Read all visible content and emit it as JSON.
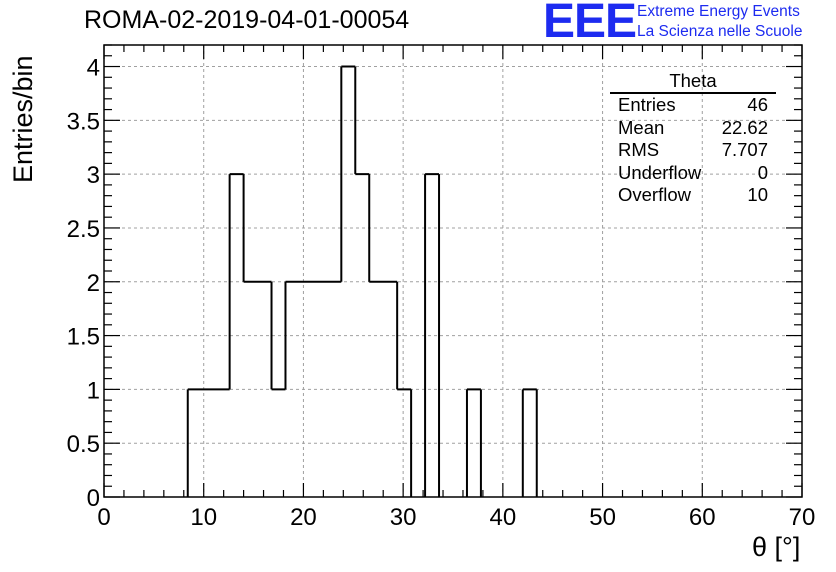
{
  "header": {
    "title": "ROMA-02-2019-04-01-00054",
    "logo_text": "EEE",
    "logo_line1": "Extreme Energy Events",
    "logo_line2": "La Scienza nelle Scuole",
    "logo_color": "#1d2bf0"
  },
  "stats": {
    "title": "Theta",
    "rows": [
      {
        "label": "Entries",
        "value": "46"
      },
      {
        "label": "Mean",
        "value": "22.62"
      },
      {
        "label": "RMS",
        "value": "7.707"
      },
      {
        "label": "Underflow",
        "value": "0"
      },
      {
        "label": "Overflow",
        "value": "10"
      }
    ]
  },
  "chart_data": {
    "type": "bar",
    "style": "step-histogram",
    "title": "ROMA-02-2019-04-01-00054",
    "xlabel": "θ [°]",
    "ylabel": "Entries/bin",
    "xlim": [
      0,
      70
    ],
    "ylim": [
      0,
      4.2
    ],
    "grid": true,
    "bin_width": 1.4,
    "bin_edges": [
      0,
      1.4,
      2.8,
      4.2,
      5.6,
      7.0,
      8.4,
      9.8,
      11.2,
      12.6,
      14.0,
      15.4,
      16.8,
      18.2,
      19.6,
      21.0,
      22.4,
      23.8,
      25.2,
      26.6,
      28.0,
      29.4,
      30.8,
      32.2,
      33.6,
      35.0,
      36.4,
      37.8,
      39.2,
      40.6,
      42.0,
      43.4,
      44.8,
      46.2,
      47.6,
      49.0,
      50.4,
      51.8,
      53.2,
      54.6,
      56.0,
      57.4,
      58.8,
      60.2,
      61.6,
      63.0,
      64.4,
      65.8,
      67.2,
      68.6,
      70.0
    ],
    "values": [
      0,
      0,
      0,
      0,
      0,
      0,
      1,
      1,
      1,
      3,
      2,
      2,
      1,
      2,
      2,
      2,
      2,
      4,
      3,
      2,
      2,
      1,
      0,
      3,
      0,
      0,
      1,
      0,
      0,
      0,
      1,
      0,
      0,
      0,
      0,
      0,
      0,
      0,
      0,
      0,
      0,
      0,
      0,
      0,
      0,
      0,
      0,
      0,
      0,
      0
    ],
    "x_ticks": [
      "0",
      "10",
      "20",
      "30",
      "40",
      "50",
      "60",
      "70"
    ],
    "y_ticks": [
      "0",
      "0.5",
      "1",
      "1.5",
      "2",
      "2.5",
      "3",
      "3.5",
      "4"
    ],
    "line_color": "#000000",
    "grid_color": "#a0a0a0"
  }
}
